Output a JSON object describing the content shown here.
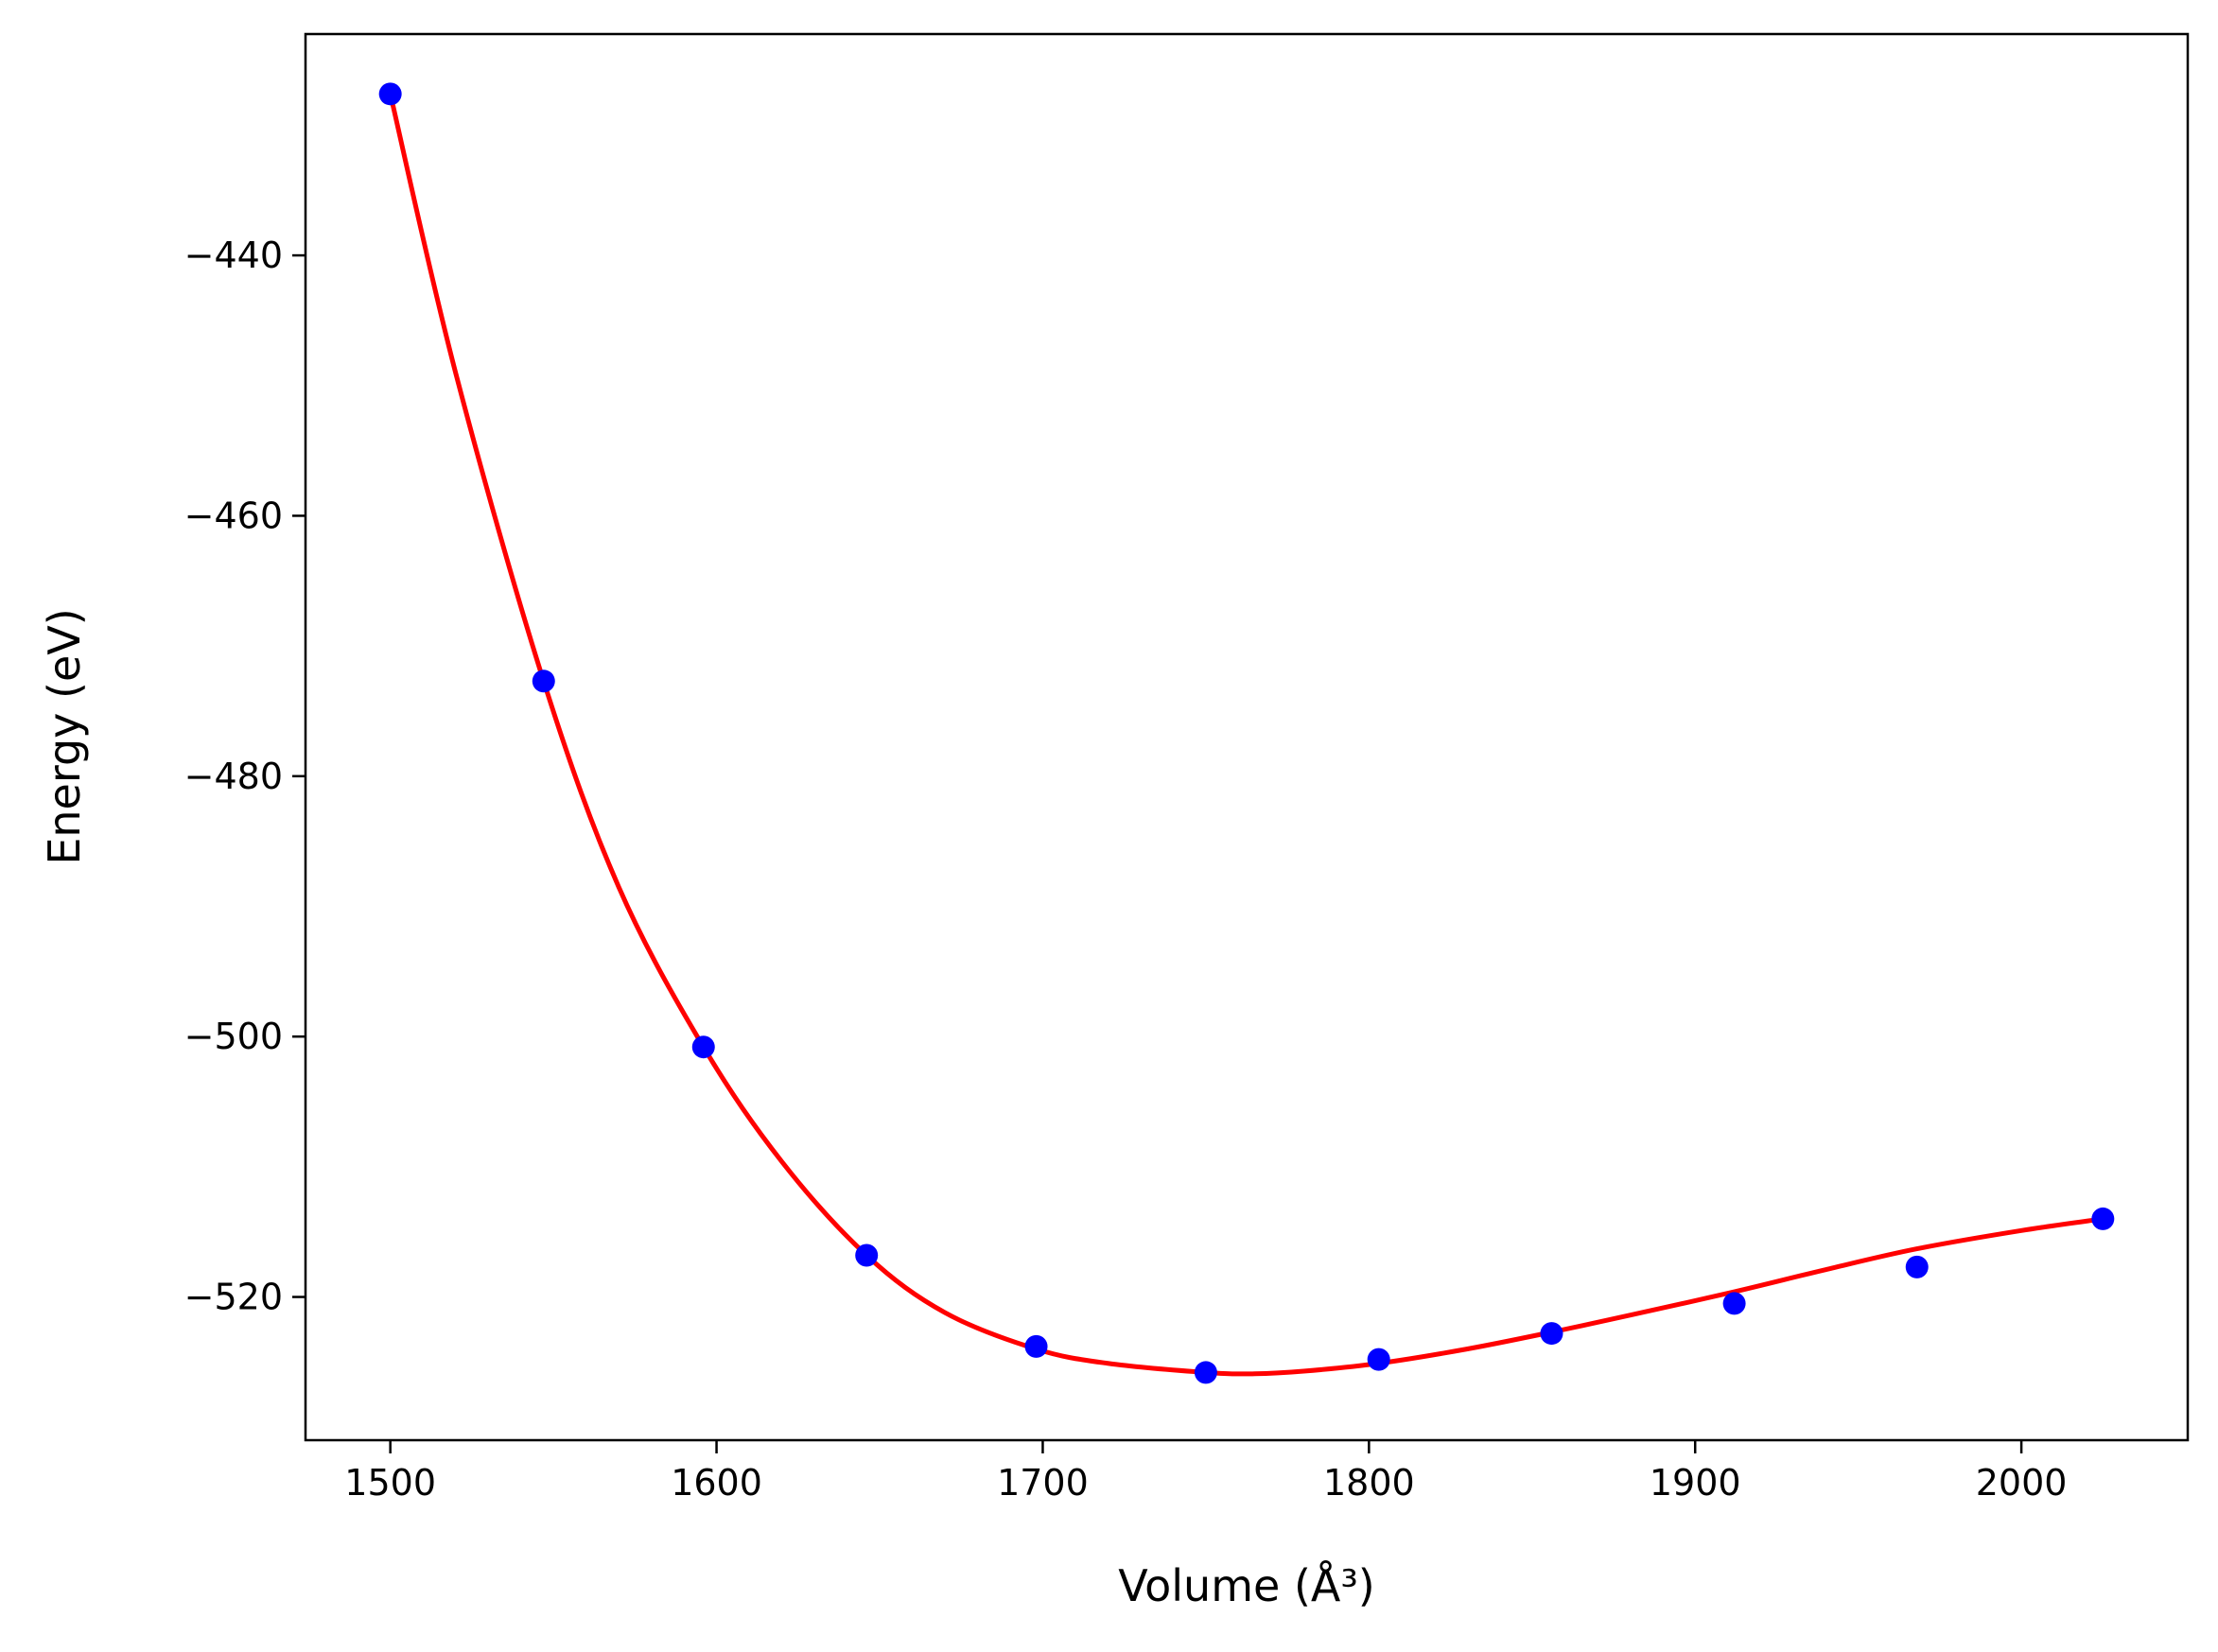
{
  "chart_data": {
    "type": "line",
    "title": "",
    "xlabel": "Volume (Å³)",
    "ylabel": "Energy (eV)",
    "xlim": [
      1474,
      2051
    ],
    "ylim": [
      -531,
      -423
    ],
    "xticks": [
      1500,
      1600,
      1700,
      1800,
      1900,
      2000
    ],
    "yticks": [
      -440,
      -460,
      -480,
      -500,
      -520
    ],
    "xtick_labels": [
      "1500",
      "1600",
      "1700",
      "1800",
      "1900",
      "2000"
    ],
    "ytick_labels": [
      "−440",
      "−460",
      "−480",
      "−500",
      "−520"
    ],
    "grid": false,
    "legend": "none",
    "series": [
      {
        "kind": "scatter",
        "color": "#0000ff",
        "x": [
          1500,
          1547,
          1596,
          1646,
          1698,
          1750,
          1803,
          1856,
          1912,
          1968,
          2025
        ],
        "y": [
          -427.6,
          -472.7,
          -500.8,
          -516.8,
          -523.8,
          -525.8,
          -524.8,
          -522.8,
          -520.5,
          -517.7,
          -514.0
        ]
      },
      {
        "kind": "line",
        "color": "#ff0000",
        "x": [
          1500,
          1520,
          1547,
          1570,
          1596,
          1620,
          1646,
          1670,
          1698,
          1720,
          1750,
          1765,
          1780,
          1803,
          1830,
          1856,
          1880,
          1912,
          1940,
          1968,
          2000,
          2025
        ],
        "y": [
          -427.6,
          -449,
          -472.7,
          -488.5,
          -500.8,
          -509.6,
          -516.8,
          -521.2,
          -524.0,
          -525.1,
          -525.8,
          -525.9,
          -525.7,
          -525.1,
          -524.0,
          -522.7,
          -521.4,
          -519.6,
          -517.9,
          -516.3,
          -514.9,
          -514.0
        ]
      }
    ]
  }
}
